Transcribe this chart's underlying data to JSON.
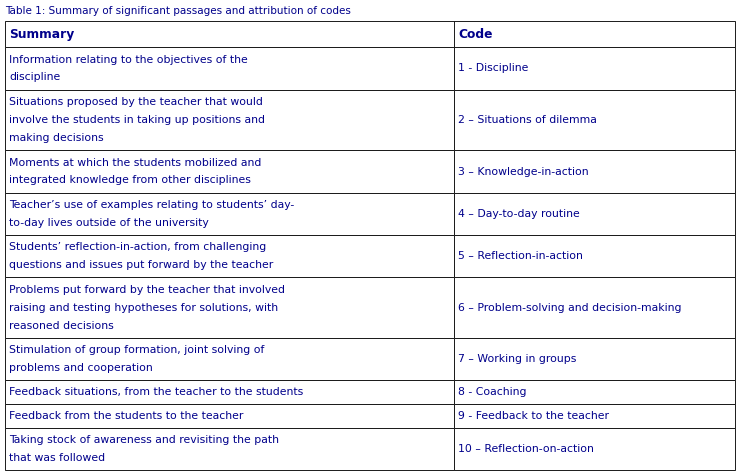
{
  "title": "Table 1: Summary of significant passages and attribution of codes",
  "headers": [
    "Summary",
    "Code"
  ],
  "rows": [
    [
      "Information relating to the objectives of the\ndiscipline",
      "1 - Discipline"
    ],
    [
      "Situations proposed by the teacher that would\ninvolve the students in taking up positions and\nmaking decisions",
      "2 – Situations of dilemma"
    ],
    [
      "Moments at which the students mobilized and\nintegrated knowledge from other disciplines",
      "3 – Knowledge-in-action"
    ],
    [
      "Teacher’s use of examples relating to students’ day-\nto-day lives outside of the university",
      "4 – Day-to-day routine"
    ],
    [
      "Students’ reflection-in-action, from challenging\nquestions and issues put forward by the teacher",
      "5 – Reflection-in-action"
    ],
    [
      "Problems put forward by the teacher that involved\nraising and testing hypotheses for solutions, with\nreasoned decisions",
      "6 – Problem-solving and decision-making"
    ],
    [
      "Stimulation of group formation, joint solving of\nproblems and cooperation",
      "7 – Working in groups"
    ],
    [
      "Feedback situations, from the teacher to the students",
      "8 - Coaching"
    ],
    [
      "Feedback from the students to the teacher",
      "9 - Feedback to the teacher"
    ],
    [
      "Taking stock of awareness and revisiting the path\nthat was followed",
      "10 – Reflection-on-action"
    ]
  ],
  "col_split": 0.615,
  "background_color": "#ffffff",
  "border_color": "#1a1a1a",
  "text_color": "#00008B",
  "title_color": "#00008B",
  "header_font_size": 8.8,
  "body_font_size": 7.8,
  "title_font_size": 7.5,
  "fig_width": 7.4,
  "fig_height": 4.73,
  "dpi": 100
}
